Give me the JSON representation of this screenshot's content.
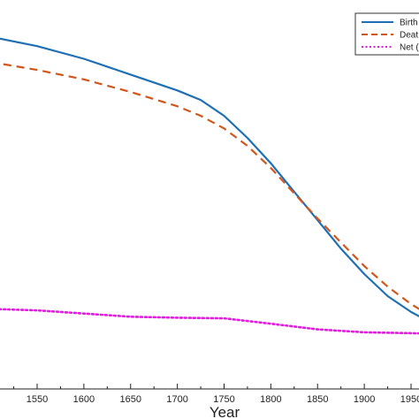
{
  "chart_data": {
    "type": "line",
    "xlabel": "Year",
    "xlim": [
      1500,
      1975
    ],
    "ylim": [
      0,
      100
    ],
    "x_ticks": [
      "1550",
      "1600",
      "1650",
      "1700",
      "1750",
      "1800",
      "1850",
      "1900",
      "1950"
    ],
    "grid": false,
    "legend_position": "top-right",
    "series": [
      {
        "name": "Birth",
        "color": "#1f6fb4",
        "style": "solid",
        "x": [
          1500,
          1550,
          1600,
          1650,
          1700,
          1725,
          1750,
          1775,
          1800,
          1825,
          1850,
          1875,
          1900,
          1925,
          1950,
          1975
        ],
        "y": [
          94,
          91,
          87,
          82,
          77,
          74,
          69,
          62,
          54,
          45,
          36,
          27,
          19,
          12,
          7,
          3
        ]
      },
      {
        "name": "Deat",
        "color": "#d2561c",
        "style": "dashed",
        "x": [
          1500,
          1550,
          1600,
          1650,
          1700,
          1725,
          1750,
          1775,
          1800,
          1825,
          1850,
          1875,
          1900,
          1925,
          1950,
          1975
        ],
        "y": [
          86,
          83.5,
          80.5,
          76.5,
          72,
          69,
          65,
          59.5,
          52.5,
          44.5,
          36.5,
          29,
          21.5,
          15,
          9.5,
          5
        ]
      },
      {
        "name": "Net (",
        "color": "#e21de0",
        "style": "dotted",
        "x": [
          1500,
          1550,
          1600,
          1650,
          1700,
          1750,
          1800,
          1850,
          1900,
          1950,
          1975
        ],
        "y": [
          8,
          7.5,
          6.5,
          5.5,
          5.2,
          5,
          3.3,
          1.5,
          0.6,
          0.3,
          0.1
        ]
      }
    ]
  }
}
